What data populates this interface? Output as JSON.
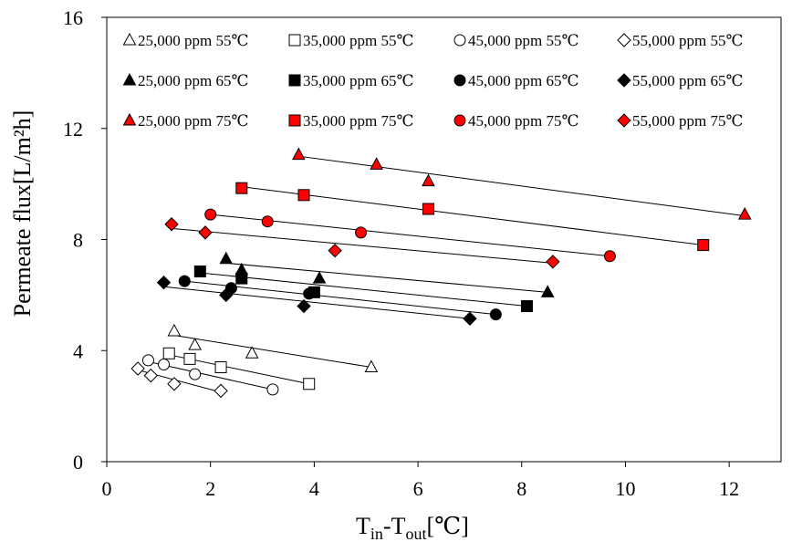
{
  "chart_data": {
    "type": "scatter",
    "xlabel": "T",
    "xlabel_sub": "in",
    "xlabel_mid": "-T",
    "xlabel_sub2": "out",
    "xlabel_unit": "[℃]",
    "ylabel": "Permeate flux[L/m²h]",
    "xlim": [
      0,
      13
    ],
    "ylim": [
      0,
      16
    ],
    "xticks": [
      "0",
      "2",
      "4",
      "6",
      "8",
      "10",
      "12"
    ],
    "yticks": [
      "0",
      "4",
      "8",
      "12",
      "16"
    ],
    "grid": false,
    "legend_position": "top",
    "series": [
      {
        "name": "25,000 ppm 55℃",
        "marker": "triangle",
        "fill": "#ffffff",
        "stroke": "#000000",
        "points": [
          [
            1.3,
            4.7
          ],
          [
            1.7,
            4.2
          ],
          [
            2.8,
            3.9
          ],
          [
            5.1,
            3.4
          ]
        ],
        "fit": [
          [
            1.3,
            4.55
          ],
          [
            5.1,
            3.4
          ]
        ]
      },
      {
        "name": "35,000 ppm 55℃",
        "marker": "square",
        "fill": "#ffffff",
        "stroke": "#000000",
        "points": [
          [
            1.2,
            3.9
          ],
          [
            1.6,
            3.7
          ],
          [
            2.2,
            3.4
          ],
          [
            3.9,
            2.8
          ]
        ],
        "fit": [
          [
            1.2,
            3.85
          ],
          [
            3.9,
            2.8
          ]
        ]
      },
      {
        "name": "45,000 ppm 55℃",
        "marker": "circle",
        "fill": "#ffffff",
        "stroke": "#000000",
        "points": [
          [
            0.8,
            3.65
          ],
          [
            1.1,
            3.5
          ],
          [
            1.7,
            3.15
          ],
          [
            3.2,
            2.6
          ]
        ],
        "fit": [
          [
            0.8,
            3.6
          ],
          [
            3.2,
            2.6
          ]
        ]
      },
      {
        "name": "55,000 ppm 55℃",
        "marker": "diamond",
        "fill": "#ffffff",
        "stroke": "#000000",
        "points": [
          [
            0.6,
            3.35
          ],
          [
            0.85,
            3.1
          ],
          [
            1.3,
            2.8
          ],
          [
            2.2,
            2.55
          ]
        ],
        "fit": [
          [
            0.6,
            3.3
          ],
          [
            2.2,
            2.5
          ]
        ]
      },
      {
        "name": "25,000 ppm 65℃",
        "marker": "triangle",
        "fill": "#000000",
        "stroke": "#000000",
        "points": [
          [
            2.3,
            7.3
          ],
          [
            2.6,
            6.9
          ],
          [
            4.1,
            6.6
          ],
          [
            8.5,
            6.1
          ]
        ],
        "fit": [
          [
            2.3,
            7.15
          ],
          [
            8.5,
            6.1
          ]
        ]
      },
      {
        "name": "35,000 ppm 65℃",
        "marker": "square",
        "fill": "#000000",
        "stroke": "#000000",
        "points": [
          [
            1.8,
            6.85
          ],
          [
            2.6,
            6.6
          ],
          [
            4.0,
            6.1
          ],
          [
            8.1,
            5.6
          ]
        ],
        "fit": [
          [
            1.8,
            6.8
          ],
          [
            8.1,
            5.6
          ]
        ]
      },
      {
        "name": "45,000 ppm 65℃",
        "marker": "circle",
        "fill": "#000000",
        "stroke": "#000000",
        "points": [
          [
            1.5,
            6.5
          ],
          [
            2.4,
            6.25
          ],
          [
            3.9,
            6.05
          ],
          [
            7.5,
            5.3
          ]
        ],
        "fit": [
          [
            1.5,
            6.5
          ],
          [
            7.5,
            5.3
          ]
        ]
      },
      {
        "name": "55,000 ppm 65℃",
        "marker": "diamond",
        "fill": "#000000",
        "stroke": "#000000",
        "points": [
          [
            1.1,
            6.45
          ],
          [
            2.3,
            6.0
          ],
          [
            3.8,
            5.6
          ],
          [
            7.0,
            5.15
          ]
        ],
        "fit": [
          [
            1.1,
            6.3
          ],
          [
            7.0,
            5.15
          ]
        ]
      },
      {
        "name": "25,000 ppm 75℃",
        "marker": "triangle",
        "fill": "#ff0000",
        "stroke": "#000000",
        "points": [
          [
            3.7,
            11.05
          ],
          [
            5.2,
            10.7
          ],
          [
            6.2,
            10.1
          ],
          [
            12.3,
            8.9
          ]
        ],
        "fit": [
          [
            3.7,
            11.0
          ],
          [
            12.3,
            8.85
          ]
        ]
      },
      {
        "name": "35,000 ppm 75℃",
        "marker": "square",
        "fill": "#ff0000",
        "stroke": "#000000",
        "points": [
          [
            2.6,
            9.85
          ],
          [
            3.8,
            9.6
          ],
          [
            6.2,
            9.1
          ],
          [
            11.5,
            7.8
          ]
        ],
        "fit": [
          [
            2.6,
            9.9
          ],
          [
            11.5,
            7.8
          ]
        ]
      },
      {
        "name": "45,000 ppm 75℃",
        "marker": "circle",
        "fill": "#ff0000",
        "stroke": "#000000",
        "points": [
          [
            2.0,
            8.9
          ],
          [
            3.1,
            8.65
          ],
          [
            4.9,
            8.25
          ],
          [
            9.7,
            7.4
          ]
        ],
        "fit": [
          [
            2.0,
            8.9
          ],
          [
            9.7,
            7.4
          ]
        ]
      },
      {
        "name": "55,000 ppm 75℃",
        "marker": "diamond",
        "fill": "#ff0000",
        "stroke": "#000000",
        "points": [
          [
            1.25,
            8.55
          ],
          [
            1.9,
            8.25
          ],
          [
            4.4,
            7.6
          ],
          [
            8.6,
            7.2
          ]
        ],
        "fit": [
          [
            1.25,
            8.4
          ],
          [
            8.6,
            7.15
          ]
        ]
      }
    ]
  }
}
